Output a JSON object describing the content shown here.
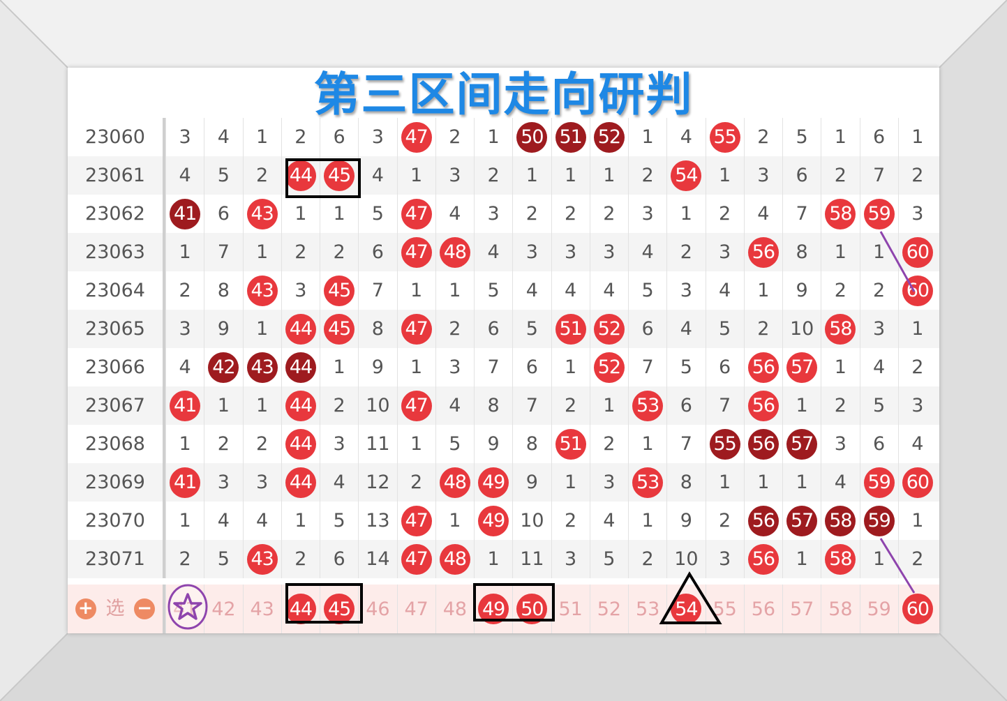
{
  "title": "第三区间走向研判",
  "columns": [
    41,
    42,
    43,
    44,
    45,
    46,
    47,
    48,
    49,
    50,
    51,
    52,
    53,
    54,
    55,
    56,
    57,
    58,
    59,
    60
  ],
  "rows": [
    {
      "period": "23060",
      "cells": [
        3,
        4,
        1,
        2,
        6,
        3,
        47,
        2,
        1,
        50,
        51,
        52,
        1,
        4,
        55,
        2,
        5,
        1,
        6,
        1
      ],
      "dark": [
        50,
        51,
        52
      ]
    },
    {
      "period": "23061",
      "cells": [
        4,
        5,
        2,
        44,
        45,
        4,
        1,
        3,
        2,
        1,
        1,
        1,
        2,
        54,
        1,
        3,
        6,
        2,
        7,
        2
      ],
      "dark": []
    },
    {
      "period": "23062",
      "cells": [
        41,
        6,
        43,
        1,
        1,
        5,
        47,
        4,
        3,
        2,
        2,
        2,
        3,
        1,
        2,
        4,
        7,
        58,
        59,
        3
      ],
      "dark": [
        41
      ]
    },
    {
      "period": "23063",
      "cells": [
        1,
        7,
        1,
        2,
        2,
        6,
        47,
        48,
        4,
        3,
        3,
        3,
        4,
        2,
        3,
        56,
        8,
        1,
        1,
        60
      ],
      "dark": []
    },
    {
      "period": "23064",
      "cells": [
        2,
        8,
        43,
        3,
        45,
        7,
        1,
        1,
        5,
        4,
        4,
        4,
        5,
        3,
        4,
        1,
        9,
        2,
        2,
        60
      ],
      "dark": []
    },
    {
      "period": "23065",
      "cells": [
        3,
        9,
        1,
        44,
        45,
        8,
        47,
        2,
        6,
        5,
        51,
        52,
        6,
        4,
        5,
        2,
        10,
        58,
        3,
        1
      ],
      "dark": []
    },
    {
      "period": "23066",
      "cells": [
        4,
        42,
        43,
        44,
        1,
        9,
        1,
        3,
        7,
        6,
        1,
        52,
        7,
        5,
        6,
        56,
        57,
        1,
        4,
        2
      ],
      "dark": [
        42,
        43,
        44
      ]
    },
    {
      "period": "23067",
      "cells": [
        41,
        1,
        1,
        44,
        2,
        10,
        47,
        4,
        8,
        7,
        2,
        1,
        53,
        6,
        7,
        56,
        1,
        2,
        5,
        3
      ],
      "dark": []
    },
    {
      "period": "23068",
      "cells": [
        1,
        2,
        2,
        44,
        3,
        11,
        1,
        5,
        9,
        8,
        51,
        2,
        1,
        7,
        55,
        56,
        57,
        3,
        6,
        4
      ],
      "dark": [
        55,
        56,
        57
      ]
    },
    {
      "period": "23069",
      "cells": [
        41,
        3,
        3,
        44,
        4,
        12,
        2,
        48,
        49,
        9,
        1,
        3,
        53,
        8,
        1,
        1,
        1,
        4,
        59,
        60
      ],
      "dark": []
    },
    {
      "period": "23070",
      "cells": [
        1,
        4,
        4,
        1,
        5,
        13,
        47,
        1,
        49,
        10,
        2,
        4,
        1,
        9,
        2,
        56,
        57,
        58,
        59,
        1
      ],
      "dark": [
        56,
        57,
        58,
        59
      ]
    },
    {
      "period": "23071",
      "cells": [
        2,
        5,
        43,
        2,
        6,
        14,
        47,
        48,
        1,
        11,
        3,
        5,
        2,
        10,
        3,
        56,
        1,
        58,
        1,
        2
      ],
      "dark": []
    }
  ],
  "selector": {
    "plus": "+",
    "label": "选",
    "minus": "−",
    "selected": [
      44,
      45,
      49,
      50,
      54,
      60
    ]
  },
  "colors": {
    "ball": "#e8383d",
    "ball_dark": "#9e1b1f",
    "title": "#1e88e5",
    "annotation_purple": "#8e44ad"
  }
}
